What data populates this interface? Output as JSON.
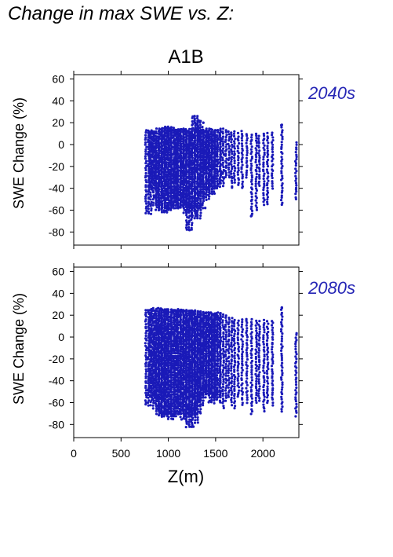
{
  "figure_title": "Change in max SWE vs. Z:",
  "chart_data": [
    {
      "type": "scatter",
      "title": "A1B",
      "panel_label": "2040s",
      "xlabel": "Z(m)",
      "ylabel": "SWE Change (%)",
      "xlim": [
        0,
        2380
      ],
      "ylim": [
        -92,
        64
      ],
      "x_ticks": [
        0,
        500,
        1000,
        1500,
        2000
      ],
      "y_ticks": [
        -80,
        -60,
        -40,
        -20,
        0,
        20,
        40,
        60
      ],
      "x_tick_labels_visible": false,
      "grid": false,
      "color": "#1a1ab8",
      "series": [
        {
          "x": [
            790,
            830,
            870,
            900,
            930,
            960,
            1000,
            1030,
            1060,
            1100,
            1130,
            1160,
            1190,
            1220,
            1250,
            1280,
            1310,
            1340,
            1370,
            1400,
            1430,
            1460,
            1490,
            1520,
            1550,
            1580,
            1610,
            1640,
            1670,
            1700,
            1740,
            1780,
            1830,
            1880,
            1930,
            1960,
            2010,
            2050,
            2100,
            2200,
            2350
          ],
          "y_min": [
            -63,
            -40,
            -55,
            -60,
            -58,
            -62,
            -60,
            -58,
            -55,
            -58,
            -57,
            -55,
            -62,
            -78,
            -60,
            -65,
            -67,
            -58,
            -45,
            -50,
            -40,
            -45,
            -40,
            -38,
            -35,
            -38,
            -30,
            -30,
            -40,
            -35,
            -37,
            -40,
            -30,
            -65,
            -60,
            -38,
            -55,
            -55,
            -40,
            -55,
            -50
          ],
          "y_max": [
            13,
            12,
            12,
            14,
            14,
            15,
            16,
            15,
            13,
            14,
            14,
            14,
            13,
            12,
            14,
            26,
            22,
            16,
            13,
            13,
            14,
            12,
            13,
            13,
            14,
            14,
            13,
            12,
            11,
            12,
            10,
            12,
            10,
            9,
            10,
            8,
            10,
            10,
            11,
            18,
            2
          ]
        }
      ],
      "outliers": [
        [
          1278,
          26
        ],
        [
          1320,
          22
        ],
        [
          1370,
          20
        ],
        [
          1220,
          -78
        ],
        [
          1390,
          -58
        ],
        [
          1880,
          -65
        ],
        [
          2200,
          18
        ]
      ]
    },
    {
      "type": "scatter",
      "panel_label": "2080s",
      "xlabel": "Z(m)",
      "ylabel": "SWE Change (%)",
      "xlim": [
        0,
        2380
      ],
      "ylim": [
        -92,
        64
      ],
      "x_ticks": [
        0,
        500,
        1000,
        1500,
        2000
      ],
      "x_tick_labels": [
        "0",
        "500",
        "1000",
        "1500",
        "2000"
      ],
      "y_ticks": [
        -80,
        -60,
        -40,
        -20,
        0,
        20,
        40,
        60
      ],
      "grid": false,
      "color": "#1a1ab8",
      "series": [
        {
          "x": [
            790,
            830,
            870,
            900,
            930,
            960,
            1000,
            1030,
            1060,
            1100,
            1130,
            1160,
            1190,
            1220,
            1250,
            1280,
            1310,
            1340,
            1370,
            1400,
            1430,
            1460,
            1490,
            1520,
            1550,
            1580,
            1610,
            1640,
            1670,
            1700,
            1740,
            1780,
            1830,
            1880,
            1930,
            1960,
            2010,
            2050,
            2100,
            2200,
            2350
          ],
          "y_min": [
            -62,
            -55,
            -65,
            -70,
            -72,
            -73,
            -70,
            -75,
            -72,
            -70,
            -70,
            -75,
            -72,
            -82,
            -70,
            -78,
            -70,
            -62,
            -55,
            -50,
            -52,
            -60,
            -57,
            -55,
            -60,
            -65,
            -58,
            -55,
            -62,
            -65,
            -55,
            -62,
            -60,
            -70,
            -60,
            -58,
            -68,
            -60,
            -62,
            -68,
            -72
          ],
          "y_max": [
            25,
            24,
            26,
            26,
            25,
            24,
            25,
            25,
            24,
            25,
            24,
            25,
            24,
            24,
            23,
            24,
            23,
            23,
            22,
            22,
            22,
            21,
            22,
            22,
            21,
            20,
            20,
            18,
            17,
            16,
            15,
            16,
            17,
            16,
            15,
            14,
            15,
            14,
            15,
            27,
            4
          ]
        }
      ],
      "outliers": [
        [
          1220,
          -80
        ],
        [
          1250,
          -82
        ],
        [
          1265,
          -82
        ],
        [
          2200,
          27
        ],
        [
          1290,
          -70
        ]
      ]
    }
  ]
}
